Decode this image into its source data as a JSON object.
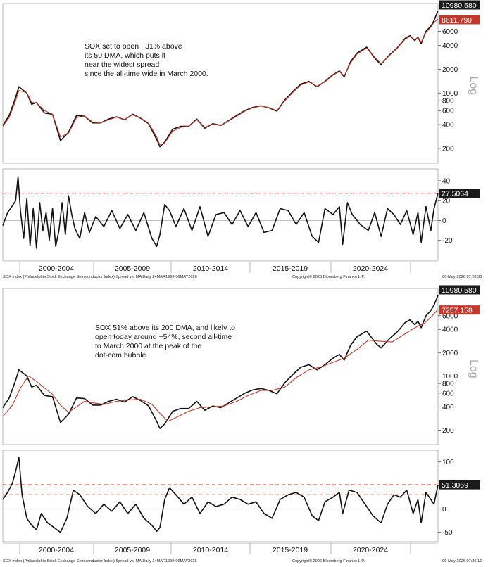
{
  "colors": {
    "price": "#111111",
    "ma": "#c0392b",
    "ref_line": "#c0392b",
    "label_dark": "#1a1a1a",
    "label_red": "#c0392b",
    "grid": "#cccccc"
  },
  "x_period_labels": [
    "2000-2004",
    "2005-2009",
    "2010-2014",
    "2015-2019",
    "2020-2024"
  ],
  "chart_data": [
    {
      "type": "line",
      "panel": "top-price",
      "scale": "log",
      "y_axis_label": "Log",
      "y_ticks": [
        200,
        400,
        600,
        800,
        1000,
        2000,
        4000,
        6000
      ],
      "ylim": [
        130,
        13500
      ],
      "xlim": [
        1999.2,
        2026.35
      ],
      "annotation": "SOX set to open ~31% above\nits 50 DMA, which puts it\nnear the widest spread\nsince the all-time wide in March 2000.",
      "last_value_label": "10980.580",
      "ma_value_label": "8611.790",
      "series": [
        {
          "role": "price",
          "x": [
            1999.2,
            1999.6,
            2000.0,
            2000.2,
            2000.7,
            2001.0,
            2001.3,
            2001.8,
            2002.3,
            2002.8,
            2003.3,
            2003.8,
            2004.3,
            2004.8,
            2005.3,
            2005.8,
            2006.3,
            2006.8,
            2007.3,
            2007.8,
            2008.3,
            2008.8,
            2009.0,
            2009.3,
            2009.8,
            2010.3,
            2010.8,
            2011.3,
            2011.8,
            2012.3,
            2012.8,
            2013.3,
            2013.8,
            2014.3,
            2014.8,
            2015.3,
            2015.8,
            2016.3,
            2016.8,
            2017.3,
            2017.8,
            2018.3,
            2018.8,
            2019.3,
            2019.8,
            2020.2,
            2020.5,
            2020.9,
            2021.3,
            2021.9,
            2022.5,
            2022.8,
            2023.3,
            2023.8,
            2024.3,
            2024.6,
            2024.9,
            2025.1,
            2025.3,
            2025.6,
            2025.9,
            2026.1,
            2026.35
          ],
          "values": [
            390,
            520,
            880,
            1200,
            1000,
            720,
            760,
            560,
            540,
            250,
            320,
            520,
            510,
            420,
            420,
            470,
            500,
            460,
            540,
            480,
            410,
            260,
            210,
            240,
            350,
            380,
            380,
            470,
            360,
            410,
            390,
            450,
            520,
            600,
            660,
            690,
            650,
            590,
            820,
            1050,
            1300,
            1400,
            1200,
            1400,
            1700,
            1900,
            1600,
            2500,
            3200,
            3800,
            2600,
            2300,
            3000,
            3700,
            4900,
            5300,
            4600,
            5100,
            4200,
            6000,
            7000,
            8200,
            10980
          ]
        },
        {
          "role": "moving-average",
          "x": [
            1999.2,
            1999.6,
            2000.0,
            2000.2,
            2000.7,
            2001.0,
            2001.3,
            2001.8,
            2002.3,
            2002.8,
            2003.3,
            2003.8,
            2004.3,
            2004.8,
            2005.3,
            2005.8,
            2006.3,
            2006.8,
            2007.3,
            2007.8,
            2008.3,
            2008.8,
            2009.0,
            2009.3,
            2009.8,
            2010.3,
            2010.8,
            2011.3,
            2011.8,
            2012.3,
            2012.8,
            2013.3,
            2013.8,
            2014.3,
            2014.8,
            2015.3,
            2015.8,
            2016.3,
            2016.8,
            2017.3,
            2017.8,
            2018.3,
            2018.8,
            2019.3,
            2019.8,
            2020.2,
            2020.5,
            2020.9,
            2021.3,
            2021.9,
            2022.5,
            2022.8,
            2023.3,
            2023.8,
            2024.3,
            2024.6,
            2024.9,
            2025.1,
            2025.3,
            2025.6,
            2025.9,
            2026.1,
            2026.35
          ],
          "values": [
            380,
            490,
            800,
            1080,
            1010,
            760,
            750,
            600,
            540,
            280,
            310,
            490,
            510,
            430,
            420,
            460,
            495,
            465,
            530,
            485,
            415,
            280,
            220,
            235,
            330,
            370,
            380,
            460,
            370,
            405,
            390,
            445,
            510,
            590,
            650,
            685,
            655,
            600,
            800,
            1020,
            1270,
            1380,
            1220,
            1380,
            1680,
            1870,
            1650,
            2400,
            3100,
            3700,
            2700,
            2350,
            2950,
            3650,
            4800,
            5200,
            4700,
            5050,
            4400,
            5800,
            6800,
            7800,
            8611
          ]
        }
      ]
    },
    {
      "type": "line",
      "panel": "top-spread",
      "y_ticks": [
        -20,
        0,
        20,
        40
      ],
      "ylim": [
        -40,
        52
      ],
      "xlim": [
        1999.2,
        2026.35
      ],
      "reference_lines": [
        27.5064
      ],
      "last_value_label": "27.5064",
      "series": [
        {
          "role": "spread-vs-50dma",
          "x": [
            1999.2,
            1999.5,
            1999.8,
            2000.0,
            2000.15,
            2000.3,
            2000.5,
            2000.7,
            2000.9,
            2001.1,
            2001.3,
            2001.5,
            2001.7,
            2001.9,
            2002.1,
            2002.3,
            2002.5,
            2002.7,
            2002.9,
            2003.1,
            2003.3,
            2003.5,
            2003.7,
            2004.0,
            2004.3,
            2004.6,
            2005.0,
            2005.5,
            2006.0,
            2006.5,
            2007.0,
            2007.5,
            2008.0,
            2008.5,
            2008.8,
            2009.0,
            2009.3,
            2009.6,
            2010.0,
            2010.5,
            2011.0,
            2011.5,
            2012.0,
            2012.5,
            2013.0,
            2013.5,
            2014.0,
            2014.5,
            2015.0,
            2015.5,
            2016.0,
            2016.5,
            2017.0,
            2017.5,
            2018.0,
            2018.5,
            2018.9,
            2019.3,
            2019.8,
            2020.2,
            2020.4,
            2020.7,
            2021.0,
            2021.5,
            2022.0,
            2022.4,
            2022.8,
            2023.2,
            2023.6,
            2024.0,
            2024.4,
            2024.8,
            2025.1,
            2025.3,
            2025.6,
            2025.9,
            2026.1,
            2026.35
          ],
          "values": [
            -5,
            8,
            15,
            20,
            44,
            10,
            -18,
            22,
            -25,
            12,
            -28,
            18,
            -10,
            8,
            -20,
            12,
            -26,
            -10,
            18,
            -14,
            25,
            6,
            -8,
            -18,
            8,
            -12,
            4,
            -6,
            10,
            -8,
            6,
            -10,
            8,
            -18,
            -26,
            -14,
            16,
            10,
            -6,
            12,
            -10,
            14,
            -16,
            6,
            8,
            -4,
            10,
            -6,
            8,
            -12,
            -10,
            12,
            10,
            -4,
            8,
            -16,
            -22,
            12,
            6,
            14,
            -24,
            18,
            6,
            -4,
            -10,
            8,
            -16,
            12,
            6,
            -4,
            10,
            -14,
            8,
            -22,
            14,
            -10,
            12,
            27.5
          ]
        }
      ]
    },
    {
      "type": "line",
      "panel": "bottom-price",
      "scale": "log",
      "y_axis_label": "Log",
      "y_ticks": [
        200,
        400,
        600,
        800,
        1000,
        2000,
        4000,
        6000
      ],
      "ylim": [
        130,
        13500
      ],
      "xlim": [
        1999.2,
        2026.35
      ],
      "annotation": "SOX 51% above its 200 DMA, and likely to\nopen today around ~54%, second all-time\nto March 2000 at the peak of the\ndot-com bubble.",
      "last_value_label": "10980.580",
      "ma_value_label": "7257.158",
      "series": [
        {
          "role": "price",
          "x": [
            1999.2,
            1999.6,
            2000.0,
            2000.2,
            2000.7,
            2001.0,
            2001.3,
            2001.8,
            2002.3,
            2002.8,
            2003.3,
            2003.8,
            2004.3,
            2004.8,
            2005.3,
            2005.8,
            2006.3,
            2006.8,
            2007.3,
            2007.8,
            2008.3,
            2008.8,
            2009.0,
            2009.3,
            2009.8,
            2010.3,
            2010.8,
            2011.3,
            2011.8,
            2012.3,
            2012.8,
            2013.3,
            2013.8,
            2014.3,
            2014.8,
            2015.3,
            2015.8,
            2016.3,
            2016.8,
            2017.3,
            2017.8,
            2018.3,
            2018.8,
            2019.3,
            2019.8,
            2020.2,
            2020.5,
            2020.9,
            2021.3,
            2021.9,
            2022.5,
            2022.8,
            2023.3,
            2023.8,
            2024.3,
            2024.6,
            2024.9,
            2025.1,
            2025.3,
            2025.6,
            2025.9,
            2026.1,
            2026.35
          ],
          "values": [
            390,
            520,
            880,
            1200,
            1000,
            720,
            760,
            560,
            540,
            250,
            320,
            520,
            510,
            420,
            420,
            470,
            500,
            460,
            540,
            480,
            410,
            260,
            210,
            240,
            350,
            380,
            380,
            470,
            360,
            410,
            390,
            450,
            520,
            600,
            660,
            690,
            650,
            590,
            820,
            1050,
            1300,
            1400,
            1200,
            1400,
            1700,
            1900,
            1600,
            2500,
            3200,
            3800,
            2600,
            2300,
            3000,
            3700,
            4900,
            5300,
            4600,
            5100,
            4200,
            6000,
            7000,
            8200,
            10980
          ]
        },
        {
          "role": "moving-average",
          "x": [
            1999.2,
            1999.8,
            2000.3,
            2000.8,
            2001.3,
            2001.8,
            2002.3,
            2002.8,
            2003.3,
            2003.8,
            2004.3,
            2004.8,
            2005.5,
            2006.3,
            2007.0,
            2007.8,
            2008.5,
            2009.0,
            2009.5,
            2010.0,
            2010.8,
            2011.5,
            2012.3,
            2013.0,
            2013.8,
            2014.5,
            2015.3,
            2016.0,
            2016.8,
            2017.5,
            2018.3,
            2019.0,
            2019.8,
            2020.5,
            2021.3,
            2022.0,
            2022.8,
            2023.5,
            2024.3,
            2025.0,
            2025.5,
            2026.0,
            2026.35
          ],
          "values": [
            300,
            420,
            700,
            1000,
            850,
            700,
            580,
            420,
            340,
            400,
            470,
            450,
            430,
            470,
            490,
            500,
            430,
            330,
            260,
            290,
            350,
            390,
            400,
            410,
            470,
            560,
            650,
            650,
            720,
            950,
            1200,
            1300,
            1500,
            1700,
            2200,
            2900,
            2800,
            2750,
            3500,
            4300,
            4800,
            6000,
            7257
          ]
        }
      ]
    },
    {
      "type": "line",
      "panel": "bottom-spread",
      "y_ticks": [
        -50,
        0,
        50,
        100
      ],
      "ylim": [
        -70,
        125
      ],
      "xlim": [
        1999.2,
        2026.35
      ],
      "reference_lines": [
        51.3069,
        30
      ],
      "last_value_label": "51.3069",
      "series": [
        {
          "role": "spread-vs-200dma",
          "x": [
            1999.2,
            1999.5,
            1999.8,
            2000.0,
            2000.2,
            2000.4,
            2000.7,
            2001.0,
            2001.3,
            2001.6,
            2002.0,
            2002.4,
            2002.8,
            2003.2,
            2003.6,
            2004.0,
            2004.5,
            2005.0,
            2005.5,
            2006.0,
            2006.5,
            2007.0,
            2007.5,
            2008.0,
            2008.5,
            2008.8,
            2009.0,
            2009.3,
            2009.6,
            2010.0,
            2010.5,
            2011.0,
            2011.5,
            2012.0,
            2012.5,
            2013.0,
            2013.5,
            2014.0,
            2014.5,
            2015.0,
            2015.5,
            2016.0,
            2016.5,
            2017.0,
            2017.5,
            2018.0,
            2018.5,
            2018.9,
            2019.3,
            2019.8,
            2020.2,
            2020.4,
            2020.8,
            2021.3,
            2021.8,
            2022.3,
            2022.8,
            2023.2,
            2023.6,
            2024.0,
            2024.4,
            2024.8,
            2025.1,
            2025.3,
            2025.6,
            2025.9,
            2026.1,
            2026.35
          ],
          "values": [
            20,
            35,
            55,
            80,
            110,
            30,
            -20,
            -35,
            -45,
            -10,
            -30,
            -40,
            -50,
            -20,
            40,
            30,
            5,
            -10,
            10,
            -5,
            15,
            -10,
            10,
            -20,
            -35,
            -48,
            -40,
            20,
            45,
            30,
            10,
            25,
            -10,
            15,
            5,
            10,
            25,
            20,
            10,
            15,
            -10,
            -20,
            20,
            30,
            35,
            25,
            -15,
            -25,
            15,
            25,
            35,
            -10,
            40,
            35,
            10,
            -15,
            -30,
            10,
            30,
            25,
            40,
            -10,
            20,
            -30,
            35,
            20,
            10,
            51.3
          ]
        }
      ]
    }
  ],
  "footers": [
    {
      "left": "SOX Index (Philadelphia Stock Exchange Semiconductor Index) Spread vs. MA Daily 24MAR1999-06MAY2026",
      "mid": "Copyright® 2026 Bloomberg Finance L.P.",
      "right": "06-May-2026 07:28:36"
    },
    {
      "left": "SOX Index (Philadelphia Stock Exchange Semiconductor Index) Spread vs. MA Daily 24MAR1999-06MAY2026",
      "mid": "Copyright® 2026 Bloomberg Finance L.P.",
      "right": "06-May-2026 07:26:16"
    }
  ]
}
